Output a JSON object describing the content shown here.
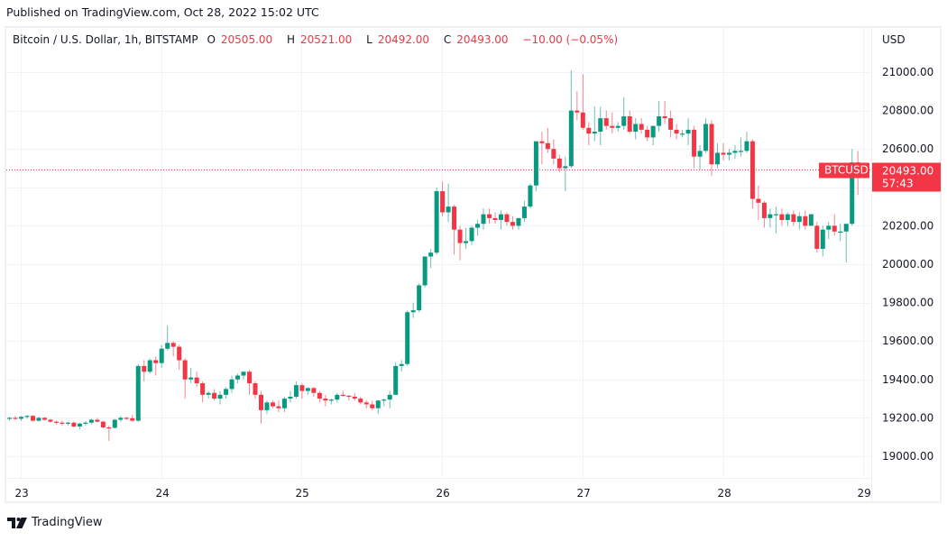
{
  "header": {
    "published": "Published on TradingView.com, Oct 28, 2022 15:02 UTC"
  },
  "legend": {
    "symbol_desc": "Bitcoin / U.S. Dollar, 1h, BITSTAMP",
    "open_label": "O",
    "open": "20505.00",
    "high_label": "H",
    "high": "20521.00",
    "low_label": "L",
    "low": "20492.00",
    "close_label": "C",
    "close": "20493.00",
    "change": "−10.00 (−0.05%)"
  },
  "price_axis": {
    "currency": "USD",
    "ticks": [
      "21000.00",
      "20800.00",
      "20600.00",
      "20400.00",
      "20200.00",
      "20000.00",
      "19800.00",
      "19600.00",
      "19400.00",
      "19200.00",
      "19000.00"
    ]
  },
  "last_price_label": {
    "symbol": "BTCUSD",
    "price": "20493.00",
    "countdown": "57:43"
  },
  "footer": {
    "brand": "TradingView"
  },
  "colors": {
    "up": "#089981",
    "down": "#f23645",
    "grid": "#f0f3fa",
    "axis_text": "#131722",
    "frame": "#eef0f4"
  },
  "chart_data": {
    "type": "candlestick",
    "title": "Bitcoin / U.S. Dollar, 1h, BITSTAMP",
    "xlabel": "",
    "ylabel": "USD",
    "x_ticks": [
      "23",
      "24",
      "25",
      "26",
      "27",
      "28",
      "29"
    ],
    "y_ticks": [
      19000,
      19200,
      19400,
      19600,
      19800,
      20000,
      20200,
      20400,
      20600,
      20800,
      21000
    ],
    "ylim": [
      18930,
      21240
    ],
    "grid": true,
    "last_price": 20493.0,
    "last_ohlc": {
      "open": 20505.0,
      "high": 20521.0,
      "low": 20492.0,
      "close": 20493.0
    },
    "start_hour_offset": -2,
    "candles": [
      [
        19195,
        19205,
        19185,
        19200
      ],
      [
        19200,
        19210,
        19190,
        19195
      ],
      [
        19195,
        19210,
        19185,
        19205
      ],
      [
        19205,
        19215,
        19195,
        19210
      ],
      [
        19210,
        19215,
        19180,
        19185
      ],
      [
        19185,
        19205,
        19180,
        19200
      ],
      [
        19200,
        19205,
        19185,
        19190
      ],
      [
        19190,
        19195,
        19175,
        19180
      ],
      [
        19180,
        19185,
        19165,
        19175
      ],
      [
        19175,
        19185,
        19160,
        19170
      ],
      [
        19170,
        19180,
        19160,
        19175
      ],
      [
        19175,
        19180,
        19150,
        19155
      ],
      [
        19155,
        19175,
        19140,
        19170
      ],
      [
        19170,
        19185,
        19160,
        19175
      ],
      [
        19175,
        19195,
        19165,
        19190
      ],
      [
        19190,
        19200,
        19175,
        19180
      ],
      [
        19180,
        19185,
        19145,
        19150
      ],
      [
        19150,
        19160,
        19080,
        19148
      ],
      [
        19148,
        19195,
        19145,
        19190
      ],
      [
        19190,
        19210,
        19180,
        19200
      ],
      [
        19200,
        19205,
        19190,
        19198
      ],
      [
        19198,
        19215,
        19180,
        19185
      ],
      [
        19185,
        19480,
        19180,
        19470
      ],
      [
        19470,
        19500,
        19390,
        19440
      ],
      [
        19440,
        19510,
        19430,
        19500
      ],
      [
        19500,
        19520,
        19420,
        19485
      ],
      [
        19485,
        19580,
        19460,
        19560
      ],
      [
        19560,
        19680,
        19550,
        19590
      ],
      [
        19590,
        19600,
        19520,
        19570
      ],
      [
        19570,
        19580,
        19450,
        19500
      ],
      [
        19500,
        19510,
        19300,
        19400
      ],
      [
        19400,
        19460,
        19380,
        19410
      ],
      [
        19410,
        19440,
        19360,
        19380
      ],
      [
        19380,
        19390,
        19280,
        19320
      ],
      [
        19320,
        19340,
        19300,
        19330
      ],
      [
        19330,
        19350,
        19290,
        19300
      ],
      [
        19300,
        19340,
        19270,
        19320
      ],
      [
        19320,
        19360,
        19300,
        19350
      ],
      [
        19350,
        19420,
        19330,
        19400
      ],
      [
        19400,
        19430,
        19380,
        19420
      ],
      [
        19420,
        19440,
        19400,
        19440
      ],
      [
        19440,
        19450,
        19320,
        19380
      ],
      [
        19380,
        19390,
        19300,
        19320
      ],
      [
        19320,
        19340,
        19170,
        19240
      ],
      [
        19240,
        19290,
        19220,
        19280
      ],
      [
        19280,
        19290,
        19250,
        19260
      ],
      [
        19260,
        19290,
        19230,
        19250
      ],
      [
        19250,
        19310,
        19230,
        19300
      ],
      [
        19300,
        19340,
        19280,
        19310
      ],
      [
        19310,
        19390,
        19300,
        19370
      ],
      [
        19370,
        19380,
        19300,
        19340
      ],
      [
        19340,
        19360,
        19320,
        19355
      ],
      [
        19355,
        19360,
        19310,
        19330
      ],
      [
        19330,
        19340,
        19280,
        19300
      ],
      [
        19300,
        19320,
        19260,
        19290
      ],
      [
        19290,
        19300,
        19270,
        19295
      ],
      [
        19295,
        19330,
        19280,
        19320
      ],
      [
        19320,
        19340,
        19310,
        19315
      ],
      [
        19315,
        19320,
        19290,
        19310
      ],
      [
        19310,
        19330,
        19290,
        19300
      ],
      [
        19300,
        19310,
        19270,
        19280
      ],
      [
        19280,
        19290,
        19250,
        19270
      ],
      [
        19270,
        19290,
        19240,
        19250
      ],
      [
        19250,
        19290,
        19220,
        19290
      ],
      [
        19290,
        19300,
        19260,
        19295
      ],
      [
        19295,
        19340,
        19250,
        19320
      ],
      [
        19320,
        19490,
        19320,
        19470
      ],
      [
        19470,
        19500,
        19440,
        19480
      ],
      [
        19480,
        19760,
        19470,
        19750
      ],
      [
        19750,
        19800,
        19720,
        19760
      ],
      [
        19760,
        19900,
        19750,
        19890
      ],
      [
        19890,
        20030,
        19880,
        20040
      ],
      [
        20040,
        20080,
        19980,
        20060
      ],
      [
        20060,
        20400,
        20050,
        20380
      ],
      [
        20380,
        20430,
        20250,
        20270
      ],
      [
        20270,
        20420,
        20220,
        20300
      ],
      [
        20300,
        20310,
        20050,
        20180
      ],
      [
        20180,
        20200,
        20020,
        20110
      ],
      [
        20110,
        20190,
        20080,
        20120
      ],
      [
        20120,
        20200,
        20100,
        20190
      ],
      [
        20190,
        20230,
        20150,
        20210
      ],
      [
        20210,
        20290,
        20180,
        20260
      ],
      [
        20260,
        20290,
        20210,
        20240
      ],
      [
        20240,
        20270,
        20210,
        20230
      ],
      [
        20230,
        20280,
        20180,
        20260
      ],
      [
        20260,
        20270,
        20200,
        20220
      ],
      [
        20220,
        20250,
        20180,
        20200
      ],
      [
        20200,
        20240,
        20180,
        20240
      ],
      [
        20240,
        20330,
        20220,
        20300
      ],
      [
        20300,
        20420,
        20290,
        20410
      ],
      [
        20410,
        20550,
        20380,
        20640
      ],
      [
        20640,
        20690,
        20520,
        20630
      ],
      [
        20630,
        20710,
        20580,
        20600
      ],
      [
        20600,
        20650,
        20520,
        20550
      ],
      [
        20550,
        20570,
        20480,
        20500
      ],
      [
        20500,
        20560,
        20380,
        20510
      ],
      [
        20510,
        21010,
        20500,
        20800
      ],
      [
        20800,
        20900,
        20750,
        20790
      ],
      [
        20790,
        20990,
        20700,
        20710
      ],
      [
        20710,
        20740,
        20620,
        20680
      ],
      [
        20680,
        20820,
        20640,
        20690
      ],
      [
        20690,
        20820,
        20620,
        20760
      ],
      [
        20760,
        20800,
        20700,
        20720
      ],
      [
        20720,
        20790,
        20680,
        20710
      ],
      [
        20710,
        20740,
        20690,
        20720
      ],
      [
        20720,
        20870,
        20700,
        20770
      ],
      [
        20770,
        20800,
        20680,
        20690
      ],
      [
        20690,
        20760,
        20650,
        20730
      ],
      [
        20730,
        20760,
        20680,
        20700
      ],
      [
        20700,
        20720,
        20640,
        20660
      ],
      [
        20660,
        20720,
        20620,
        20720
      ],
      [
        20720,
        20850,
        20690,
        20770
      ],
      [
        20770,
        20850,
        20730,
        20760
      ],
      [
        20760,
        20800,
        20660,
        20700
      ],
      [
        20700,
        20730,
        20650,
        20680
      ],
      [
        20680,
        20700,
        20660,
        20680
      ],
      [
        20680,
        20760,
        20620,
        20700
      ],
      [
        20700,
        20720,
        20500,
        20560
      ],
      [
        20560,
        20620,
        20490,
        20590
      ],
      [
        20590,
        20760,
        20580,
        20730
      ],
      [
        20730,
        20750,
        20460,
        20520
      ],
      [
        20520,
        20630,
        20500,
        20580
      ],
      [
        20580,
        20630,
        20540,
        20570
      ],
      [
        20570,
        20600,
        20540,
        20580
      ],
      [
        20580,
        20620,
        20550,
        20590
      ],
      [
        20590,
        20660,
        20560,
        20590
      ],
      [
        20590,
        20690,
        20580,
        20640
      ],
      [
        20640,
        20650,
        20290,
        20340
      ],
      [
        20340,
        20410,
        20230,
        20320
      ],
      [
        20320,
        20330,
        20190,
        20240
      ],
      [
        20240,
        20290,
        20190,
        20260
      ],
      [
        20260,
        20300,
        20160,
        20260
      ],
      [
        20260,
        20290,
        20200,
        20230
      ],
      [
        20230,
        20270,
        20200,
        20260
      ],
      [
        20260,
        20280,
        20200,
        20220
      ],
      [
        20220,
        20270,
        20180,
        20250
      ],
      [
        20250,
        20280,
        20180,
        20200
      ],
      [
        20200,
        20240,
        20210,
        20260
      ],
      [
        20200,
        20220,
        20060,
        20080
      ],
      [
        20080,
        20200,
        20040,
        20180
      ],
      [
        20180,
        20220,
        20130,
        20200
      ],
      [
        20200,
        20260,
        20150,
        20170
      ],
      [
        20170,
        20210,
        20120,
        20170
      ],
      [
        20170,
        20200,
        20010,
        20210
      ],
      [
        20210,
        20600,
        20200,
        20530
      ],
      [
        20530,
        20590,
        20360,
        20510
      ],
      [
        20505,
        20521,
        20492,
        20493
      ]
    ]
  }
}
